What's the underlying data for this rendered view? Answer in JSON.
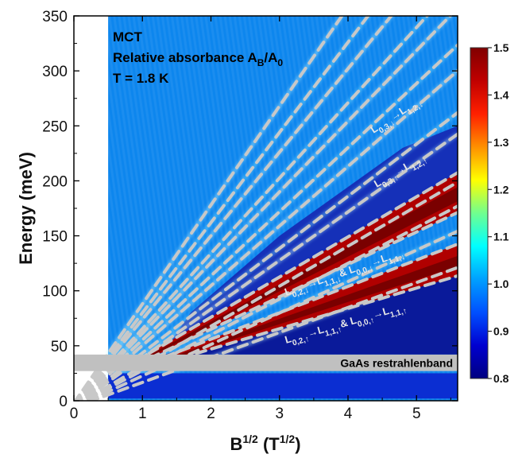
{
  "chart_data": {
    "type": "heatmap",
    "title": "",
    "xlabel": "B",
    "xlabel_sup": "1/2",
    "xlabel_unit_open": " (T",
    "xlabel_unit_sup": "1/2",
    "xlabel_unit_close": ")",
    "ylabel": "Energy (meV)",
    "xlim": [
      0,
      5.6
    ],
    "ylim": [
      0,
      350
    ],
    "xticks": [
      0,
      1,
      2,
      3,
      4,
      5
    ],
    "yticks": [
      0,
      50,
      100,
      150,
      200,
      250,
      300,
      350
    ],
    "data_x_start": 0.5,
    "colorbar": {
      "min": 0.8,
      "max": 1.5,
      "ticks": [
        "0.8",
        "0.9",
        "1.0",
        "1.1",
        "1.2",
        "1.3",
        "1.4",
        "1.5"
      ],
      "colors": [
        "#000080",
        "#0000d0",
        "#0050ff",
        "#00a0ff",
        "#00ffff",
        "#70ff8f",
        "#ffff00",
        "#ff9000",
        "#ff2000",
        "#c00000",
        "#800000"
      ]
    },
    "info_lines": {
      "line1": "MCT",
      "line2_main": "Relative absorbance A",
      "line2_sub1": "B",
      "line2_mid": "/A",
      "line2_sub2": "0",
      "line3": "T = 1.8 K"
    },
    "band": {
      "label": "GaAs restrahlenband",
      "energy_range": [
        27,
        42
      ]
    },
    "transitions": [
      {
        "label_parts": [
          "L",
          "0,3,↓",
          "→L",
          "1,2,↓"
        ],
        "energy_at_5": 295
      },
      {
        "label_parts": [
          "L",
          "0,3,↑",
          "→L",
          "1,2,↑"
        ],
        "energy_at_5": 235
      },
      {
        "label_parts": [
          "L",
          "0,2,↓",
          "→L",
          "1,1,↓",
          "& L",
          "0,0,↓",
          "→L",
          "1,1,↓"
        ],
        "energy_at_5": 160
      },
      {
        "label_parts": [
          "L",
          "0,2,↑",
          "→L",
          "1,1,↑",
          "& L",
          "0,0,↑",
          "→L",
          "1,1,↑"
        ],
        "energy_at_5": 110
      }
    ],
    "fan_lines": [
      {
        "slope": 22.7,
        "offset": -6
      },
      {
        "slope": 28.6,
        "offset": -6
      },
      {
        "slope": 32.5,
        "offset": -5
      },
      {
        "slope": 36.4,
        "offset": -5
      },
      {
        "slope": 44.2,
        "offset": -5
      },
      {
        "slope": 47.5,
        "offset": -4
      },
      {
        "slope": 54.3,
        "offset": -4
      },
      {
        "slope": 58.3,
        "offset": -3
      },
      {
        "slope": 64.3,
        "offset": -3
      },
      {
        "slope": 68.5,
        "offset": -3
      },
      {
        "slope": 76,
        "offset": -2
      },
      {
        "slope": 82,
        "offset": -2
      },
      {
        "slope": 90,
        "offset": -2
      }
    ]
  }
}
